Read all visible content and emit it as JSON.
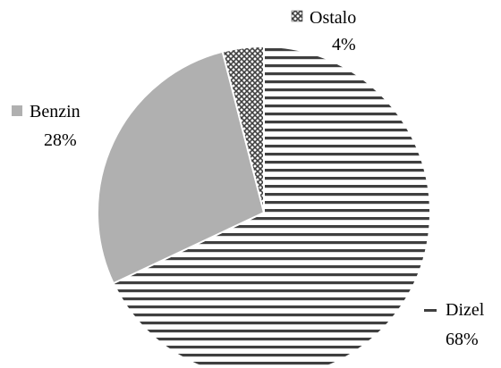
{
  "chart_data": {
    "type": "pie",
    "title": "",
    "categories": [
      "Dizel",
      "Benzin",
      "Ostalo"
    ],
    "values": [
      68,
      28,
      4
    ],
    "labels": [
      "68%",
      "28%",
      "4%"
    ],
    "fills": [
      "horizontal-stripes",
      "gray",
      "crosshatch"
    ],
    "colors": {
      "stripe": "#3f3f3f",
      "solid": "#b0b0b0",
      "crosshatch": "#404040",
      "background": "#ffffff"
    }
  }
}
